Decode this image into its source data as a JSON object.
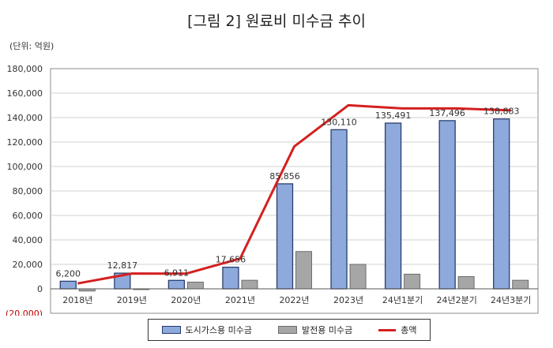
{
  "title": "[그림 2] 원료비 미수금 추이",
  "unit_label": "(단위: 억원)",
  "colors": {
    "city_gas_bar": "#8ea9db",
    "city_gas_border": "#2a3f6e",
    "power_bar": "#a6a6a6",
    "power_border": "#6d6d6d",
    "total_line": "#d42020",
    "negative_tick": "#c00000"
  },
  "chart_data": {
    "type": "bar",
    "categories": [
      "2018년",
      "2019년",
      "2020년",
      "2021년",
      "2022년",
      "2023년",
      "24년1분기",
      "24년2분기",
      "24년3분기"
    ],
    "ylim": [
      -20000,
      180000
    ],
    "y_ticks": [
      "180,000",
      "160,000",
      "140,000",
      "120,000",
      "100,000",
      "80,000",
      "60,000",
      "40,000",
      "20,000",
      "0",
      "(20,000)"
    ],
    "y_tick_values": [
      180000,
      160000,
      140000,
      120000,
      100000,
      80000,
      60000,
      40000,
      20000,
      0,
      -20000
    ],
    "grid": true,
    "legend_position": "bottom",
    "series": [
      {
        "name": "도시가스용 미수금",
        "kind": "bar",
        "values": [
          6200,
          12817,
          6911,
          17656,
          85856,
          130110,
          135491,
          137496,
          138883
        ],
        "labels": [
          "6,200",
          "12,817",
          "6,911",
          "17,656",
          "85,856",
          "130,110",
          "135,491",
          "137,496",
          "138,883"
        ]
      },
      {
        "name": "발전용 미수금",
        "kind": "bar",
        "values": [
          -1800,
          -300,
          5500,
          7000,
          30500,
          20000,
          12000,
          10000,
          7000
        ]
      },
      {
        "name": "총액",
        "kind": "line",
        "values": [
          4400,
          12500,
          12400,
          24700,
          116400,
          150100,
          147500,
          147500,
          145900
        ]
      }
    ]
  }
}
